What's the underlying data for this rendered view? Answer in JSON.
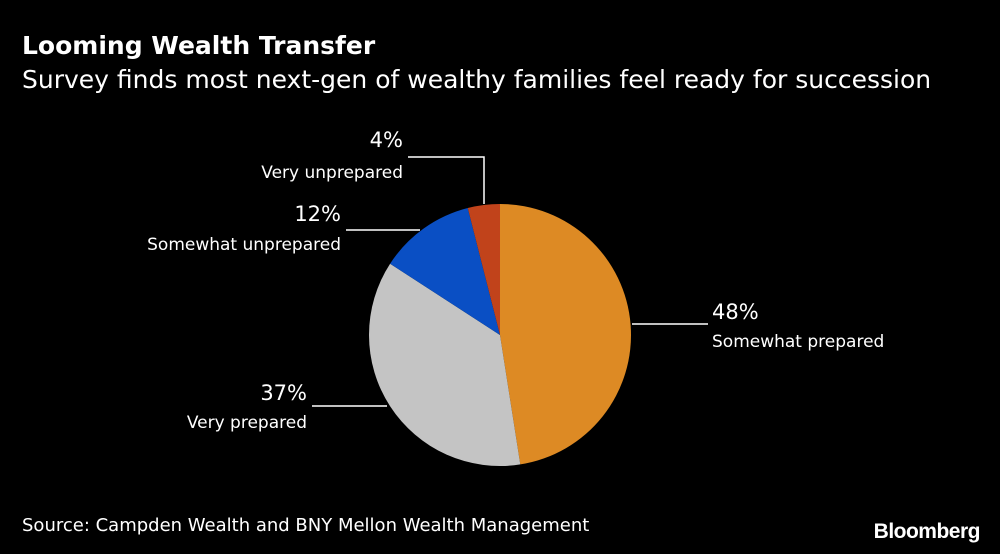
{
  "header": {
    "title": "Looming Wealth Transfer",
    "subtitle": "Survey finds most next-gen of wealthy families feel ready for succession"
  },
  "footer": {
    "source": "Source: Campden Wealth and BNY Mellon Wealth Management",
    "brand": "Bloomberg"
  },
  "chart_data": {
    "type": "pie",
    "title": "Looming Wealth Transfer",
    "subtitle": "Survey finds most next-gen of wealthy families feel ready for succession",
    "start": "12 o'clock",
    "direction": "clockwise",
    "slices": [
      {
        "label": "Somewhat prepared",
        "value": 48,
        "value_label": "48%",
        "color": "#dd8a24"
      },
      {
        "label": "Very prepared",
        "value": 37,
        "value_label": "37%",
        "color": "#c4c4c4"
      },
      {
        "label": "Somewhat unprepared",
        "value": 12,
        "value_label": "12%",
        "color": "#0a4fc4"
      },
      {
        "label": "Very unprepared",
        "value": 4,
        "value_label": "4%",
        "color": "#c1431b"
      }
    ]
  }
}
